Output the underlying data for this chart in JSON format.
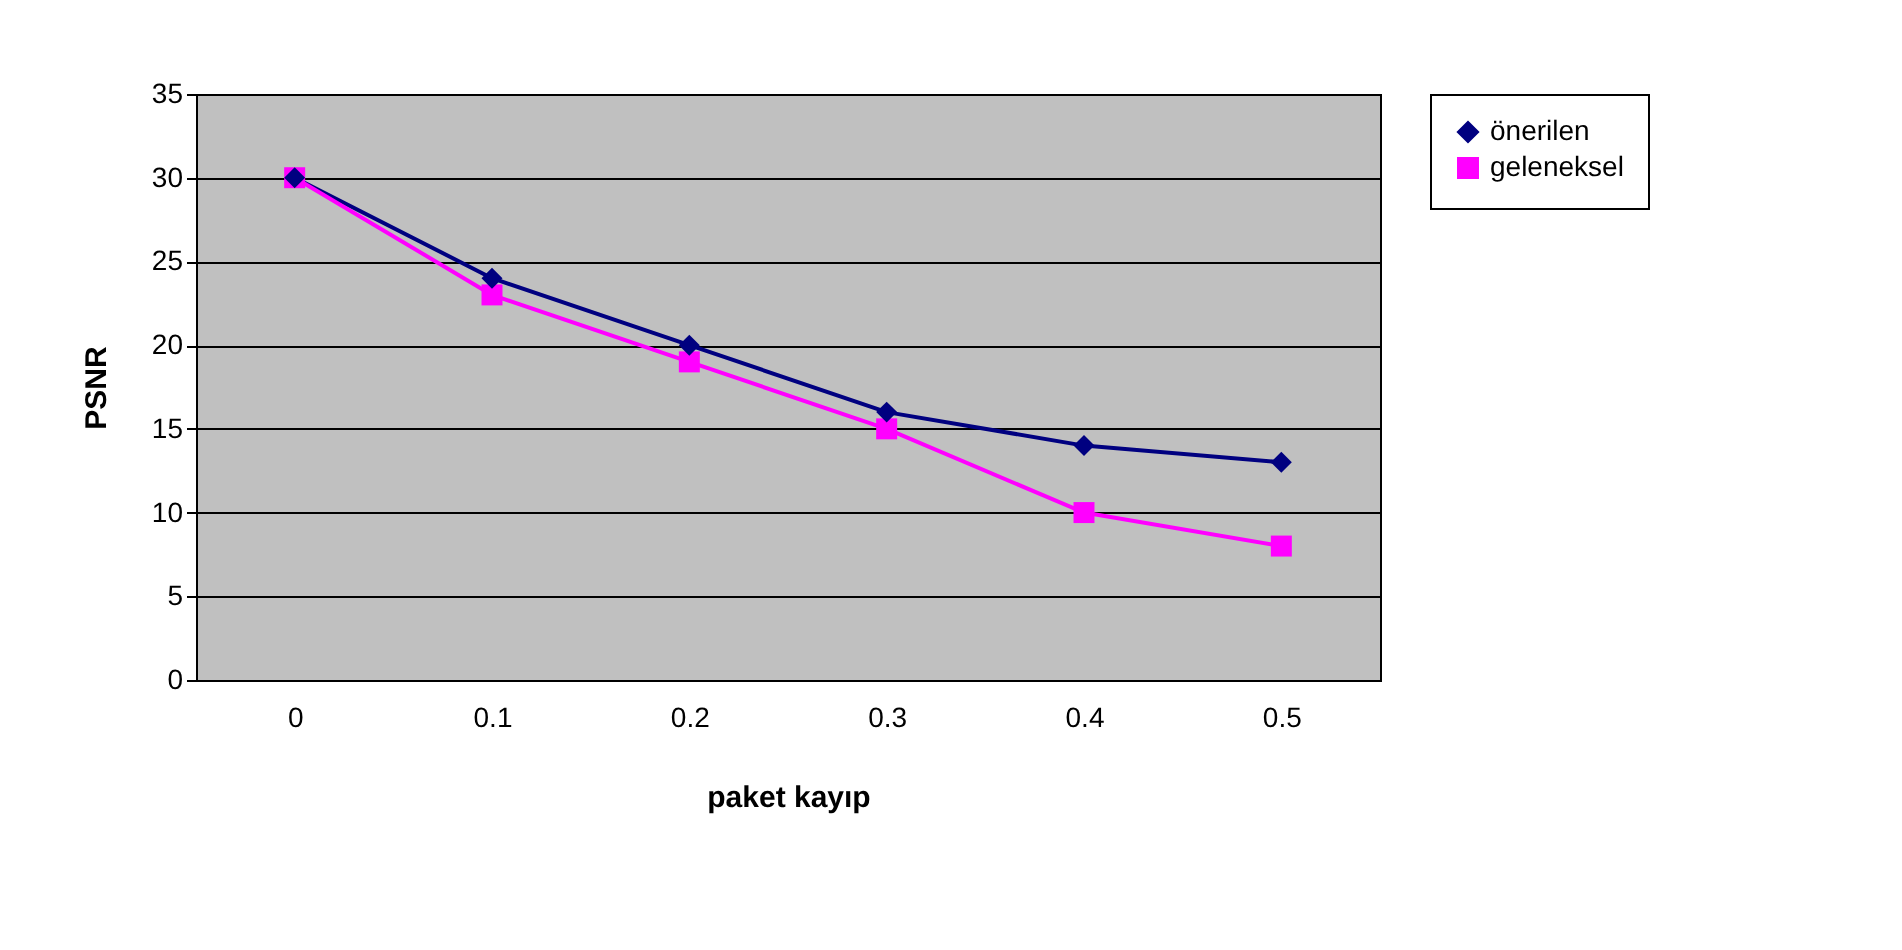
{
  "chart_data": {
    "type": "line",
    "xlabel": "paket kayıp",
    "ylabel": "PSNR",
    "categories": [
      "0",
      "0.1",
      "0.2",
      "0.3",
      "0.4",
      "0.5"
    ],
    "series": [
      {
        "name": "önerilen",
        "color": "#000080",
        "marker": "diamond",
        "values": [
          30,
          24,
          20,
          16,
          14,
          13
        ]
      },
      {
        "name": "geleneksel",
        "color": "#ff00ff",
        "marker": "square",
        "values": [
          30,
          23,
          19,
          15,
          10,
          8
        ]
      }
    ],
    "ylim": [
      0,
      35
    ],
    "yticks": [
      0,
      5,
      10,
      15,
      20,
      25,
      30,
      35
    ],
    "grid": "y",
    "legend": "right",
    "line_style": "solid"
  }
}
